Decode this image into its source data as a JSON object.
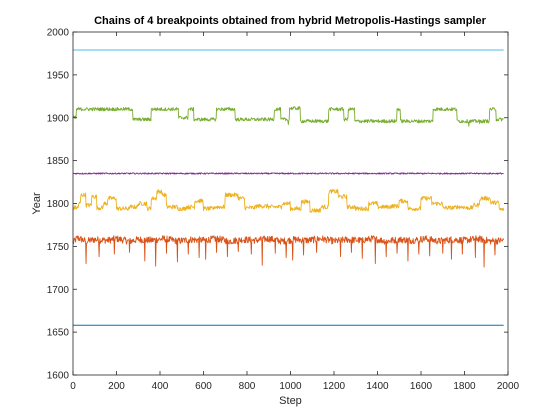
{
  "chart_data": {
    "type": "line",
    "title": "Chains of 4 breakpoints obtained from hybrid Metropolis-Hastings sampler",
    "xlabel": "Step",
    "ylabel": "Year",
    "xlim": [
      0,
      2000
    ],
    "ylim": [
      1600,
      2000
    ],
    "xticks": [
      "0",
      "200",
      "400",
      "600",
      "800",
      "1000",
      "1200",
      "1400",
      "1600",
      "1800",
      "2000"
    ],
    "yticks": [
      "1600",
      "1650",
      "1700",
      "1750",
      "1800",
      "1850",
      "1900",
      "1950",
      "2000"
    ],
    "grid": false,
    "legend": "none",
    "series": [
      {
        "color": "#D95319",
        "style": "noisy",
        "points": [
          [
            0,
            1754
          ],
          [
            20,
            1760
          ],
          [
            60,
            1756
          ],
          [
            100,
            1758
          ],
          [
            160,
            1757
          ],
          [
            200,
            1759
          ],
          [
            260,
            1756
          ],
          [
            300,
            1758
          ],
          [
            360,
            1757
          ],
          [
            420,
            1759
          ],
          [
            480,
            1756
          ],
          [
            540,
            1758
          ],
          [
            600,
            1757
          ],
          [
            660,
            1759
          ],
          [
            720,
            1756
          ],
          [
            780,
            1758
          ],
          [
            840,
            1757
          ],
          [
            900,
            1759
          ],
          [
            960,
            1756
          ],
          [
            1020,
            1758
          ],
          [
            1080,
            1757
          ],
          [
            1140,
            1759
          ],
          [
            1200,
            1756
          ],
          [
            1260,
            1758
          ],
          [
            1320,
            1757
          ],
          [
            1380,
            1759
          ],
          [
            1440,
            1756
          ],
          [
            1500,
            1758
          ],
          [
            1560,
            1757
          ],
          [
            1620,
            1759
          ],
          [
            1680,
            1756
          ],
          [
            1740,
            1758
          ],
          [
            1800,
            1757
          ],
          [
            1860,
            1759
          ],
          [
            1920,
            1756
          ],
          [
            1980,
            1757
          ]
        ],
        "noise": 4,
        "spikes": [
          [
            60,
            1730
          ],
          [
            120,
            1738
          ],
          [
            190,
            1741
          ],
          [
            260,
            1743
          ],
          [
            330,
            1733
          ],
          [
            380,
            1727
          ],
          [
            430,
            1742
          ],
          [
            480,
            1732
          ],
          [
            530,
            1741
          ],
          [
            580,
            1737
          ],
          [
            610,
            1735
          ],
          [
            660,
            1743
          ],
          [
            710,
            1738
          ],
          [
            760,
            1744
          ],
          [
            820,
            1741
          ],
          [
            870,
            1728
          ],
          [
            930,
            1742
          ],
          [
            980,
            1737
          ],
          [
            1010,
            1734
          ],
          [
            1060,
            1740
          ],
          [
            1120,
            1743
          ],
          [
            1175,
            1728
          ],
          [
            1230,
            1738
          ],
          [
            1280,
            1743
          ],
          [
            1330,
            1736
          ],
          [
            1390,
            1730
          ],
          [
            1440,
            1738
          ],
          [
            1490,
            1742
          ],
          [
            1540,
            1733
          ],
          [
            1590,
            1741
          ],
          [
            1640,
            1739
          ],
          [
            1700,
            1742
          ],
          [
            1740,
            1735
          ],
          [
            1790,
            1741
          ],
          [
            1850,
            1737
          ],
          [
            1890,
            1726
          ],
          [
            1940,
            1740
          ],
          [
            1965,
            1725
          ]
        ]
      },
      {
        "color": "#EDB120",
        "style": "steps",
        "points": [
          [
            0,
            1795
          ],
          [
            25,
            1800
          ],
          [
            35,
            1810
          ],
          [
            60,
            1798
          ],
          [
            85,
            1808
          ],
          [
            110,
            1795
          ],
          [
            140,
            1800
          ],
          [
            160,
            1806
          ],
          [
            200,
            1794
          ],
          [
            260,
            1796
          ],
          [
            300,
            1800
          ],
          [
            340,
            1794
          ],
          [
            360,
            1806
          ],
          [
            385,
            1814
          ],
          [
            410,
            1810
          ],
          [
            430,
            1796
          ],
          [
            480,
            1794
          ],
          [
            520,
            1796
          ],
          [
            560,
            1803
          ],
          [
            600,
            1794
          ],
          [
            650,
            1796
          ],
          [
            700,
            1810
          ],
          [
            760,
            1806
          ],
          [
            790,
            1795
          ],
          [
            840,
            1797
          ],
          [
            900,
            1796
          ],
          [
            960,
            1800
          ],
          [
            1000,
            1794
          ],
          [
            1050,
            1802
          ],
          [
            1090,
            1792
          ],
          [
            1140,
            1796
          ],
          [
            1175,
            1814
          ],
          [
            1220,
            1808
          ],
          [
            1260,
            1796
          ],
          [
            1300,
            1794
          ],
          [
            1360,
            1800
          ],
          [
            1400,
            1796
          ],
          [
            1460,
            1797
          ],
          [
            1500,
            1803
          ],
          [
            1540,
            1794
          ],
          [
            1600,
            1806
          ],
          [
            1650,
            1800
          ],
          [
            1700,
            1795
          ],
          [
            1760,
            1796
          ],
          [
            1800,
            1795
          ],
          [
            1840,
            1798
          ],
          [
            1870,
            1806
          ],
          [
            1920,
            1801
          ],
          [
            1960,
            1793
          ],
          [
            1980,
            1790
          ]
        ],
        "noise": 2.5
      },
      {
        "color": "#7E2F8E",
        "style": "noisy",
        "points": [
          [
            0,
            1835
          ],
          [
            500,
            1835
          ],
          [
            1000,
            1835
          ],
          [
            1500,
            1835
          ],
          [
            1980,
            1835
          ]
        ],
        "noise": 0.8
      },
      {
        "color": "#77AC30",
        "style": "steps",
        "points": [
          [
            0,
            1900
          ],
          [
            15,
            1910
          ],
          [
            270,
            1910
          ],
          [
            275,
            1898
          ],
          [
            355,
            1898
          ],
          [
            360,
            1910
          ],
          [
            480,
            1910
          ],
          [
            485,
            1900
          ],
          [
            525,
            1900
          ],
          [
            530,
            1910
          ],
          [
            550,
            1910
          ],
          [
            555,
            1898
          ],
          [
            655,
            1898
          ],
          [
            660,
            1910
          ],
          [
            740,
            1910
          ],
          [
            745,
            1898
          ],
          [
            920,
            1898
          ],
          [
            925,
            1910
          ],
          [
            950,
            1910
          ],
          [
            955,
            1898
          ],
          [
            990,
            1898
          ],
          [
            995,
            1911
          ],
          [
            1040,
            1911
          ],
          [
            1045,
            1896
          ],
          [
            1170,
            1896
          ],
          [
            1175,
            1910
          ],
          [
            1240,
            1910
          ],
          [
            1245,
            1898
          ],
          [
            1260,
            1898
          ],
          [
            1265,
            1910
          ],
          [
            1290,
            1910
          ],
          [
            1295,
            1896
          ],
          [
            1485,
            1896
          ],
          [
            1490,
            1910
          ],
          [
            1500,
            1910
          ],
          [
            1505,
            1896
          ],
          [
            1650,
            1896
          ],
          [
            1655,
            1910
          ],
          [
            1760,
            1910
          ],
          [
            1765,
            1896
          ],
          [
            1910,
            1896
          ],
          [
            1915,
            1910
          ],
          [
            1940,
            1910
          ],
          [
            1945,
            1898
          ],
          [
            1980,
            1898
          ]
        ],
        "noise": 2,
        "spikes": [
          [
            445,
            1892
          ],
          [
            990,
            1892
          ],
          [
            1820,
            1890
          ],
          [
            1870,
            1893
          ]
        ]
      },
      {
        "color": "#4DBEEE",
        "style": "flat",
        "points": [
          [
            0,
            1979
          ],
          [
            1980,
            1979
          ]
        ]
      },
      {
        "color": "#0072BD",
        "style": "flat",
        "points": [
          [
            0,
            1658
          ],
          [
            1980,
            1658
          ]
        ]
      }
    ]
  }
}
